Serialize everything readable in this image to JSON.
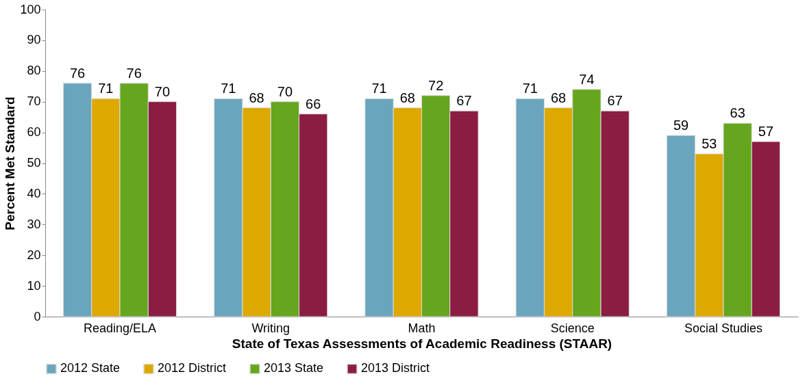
{
  "chart_data": {
    "type": "bar",
    "xlabel": "State of Texas Assessments of Academic Readiness (STAAR)",
    "ylabel": "Percent Met Standard",
    "categories": [
      "Reading/ELA",
      "Writing",
      "Math",
      "Science",
      "Social Studies"
    ],
    "series": [
      {
        "name": "2012 State",
        "color": "#6aa5bd",
        "values": [
          76,
          71,
          71,
          71,
          59
        ]
      },
      {
        "name": "2012 District",
        "color": "#dda800",
        "values": [
          71,
          68,
          68,
          68,
          53
        ]
      },
      {
        "name": "2013 State",
        "color": "#66a61e",
        "values": [
          76,
          70,
          72,
          74,
          63
        ]
      },
      {
        "name": "2013 District",
        "color": "#8b1c42",
        "values": [
          70,
          66,
          67,
          67,
          57
        ]
      }
    ],
    "ylim": [
      0,
      100
    ],
    "yticks": [
      0,
      10,
      20,
      30,
      40,
      50,
      60,
      70,
      80,
      90,
      100
    ],
    "grid": false,
    "legend": "bottom",
    "data_labels": true
  }
}
